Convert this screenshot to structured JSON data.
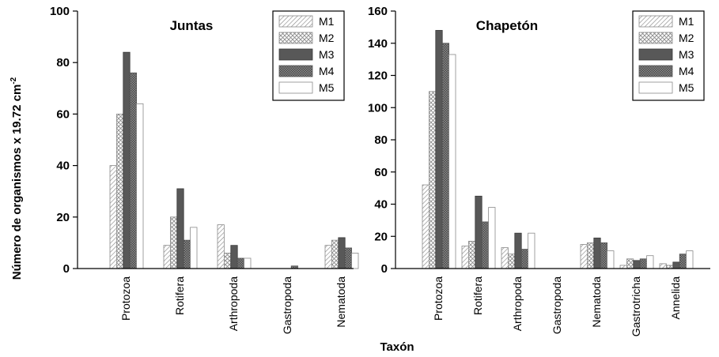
{
  "figure": {
    "ylabel_main": "Número de organismos x 19.72 cm",
    "ylabel_sup": "-2",
    "xlabel": "Taxón"
  },
  "series_styles": [
    {
      "name": "M1",
      "pattern": "diagonal-hatch",
      "fill": "#ffffff",
      "stroke": "#8a8a8a"
    },
    {
      "name": "M2",
      "pattern": "crosshatch",
      "fill": "#ffffff",
      "stroke": "#8a8a8a"
    },
    {
      "name": "M3",
      "pattern": "solid",
      "fill": "#585858",
      "stroke": "#3a3a3a"
    },
    {
      "name": "M4",
      "pattern": "dense-stipple",
      "fill": "#7a7a7a",
      "stroke": "#555555"
    },
    {
      "name": "M5",
      "pattern": "none",
      "fill": "#ffffff",
      "stroke": "#8a8a8a"
    }
  ],
  "chart_data": [
    {
      "type": "bar",
      "title": "Juntas",
      "categories": [
        "Protozoa",
        "Rotifera",
        "Arthropoda",
        "Gastropoda",
        "Nematoda"
      ],
      "ylim": [
        0,
        100
      ],
      "yticks": [
        0,
        20,
        40,
        60,
        80,
        100
      ],
      "legend": "top-right",
      "grid": false,
      "series": [
        {
          "name": "M1",
          "values": [
            40,
            9,
            17,
            0,
            9
          ]
        },
        {
          "name": "M2",
          "values": [
            60,
            20,
            6,
            0,
            11
          ]
        },
        {
          "name": "M3",
          "values": [
            84,
            31,
            9,
            0,
            12
          ]
        },
        {
          "name": "M4",
          "values": [
            76,
            11,
            4,
            1,
            8
          ]
        },
        {
          "name": "M5",
          "values": [
            64,
            16,
            4,
            0,
            6
          ]
        }
      ]
    },
    {
      "type": "bar",
      "title": "Chapetón",
      "categories": [
        "Protozoa",
        "Rotifera",
        "Arthropoda",
        "Gastropoda",
        "Nematoda",
        "Gastrotricha",
        "Annelida"
      ],
      "ylim": [
        0,
        160
      ],
      "yticks": [
        0,
        20,
        40,
        60,
        80,
        100,
        120,
        140,
        160
      ],
      "legend": "top-right",
      "grid": false,
      "series": [
        {
          "name": "M1",
          "values": [
            52,
            14,
            13,
            0,
            15,
            2,
            3
          ]
        },
        {
          "name": "M2",
          "values": [
            110,
            17,
            9,
            0,
            16,
            6,
            2
          ]
        },
        {
          "name": "M3",
          "values": [
            148,
            45,
            22,
            0,
            19,
            5,
            4
          ]
        },
        {
          "name": "M4",
          "values": [
            140,
            29,
            12,
            0,
            16,
            6,
            9
          ]
        },
        {
          "name": "M5",
          "values": [
            133,
            38,
            22,
            0,
            11,
            8,
            11
          ]
        }
      ]
    }
  ]
}
